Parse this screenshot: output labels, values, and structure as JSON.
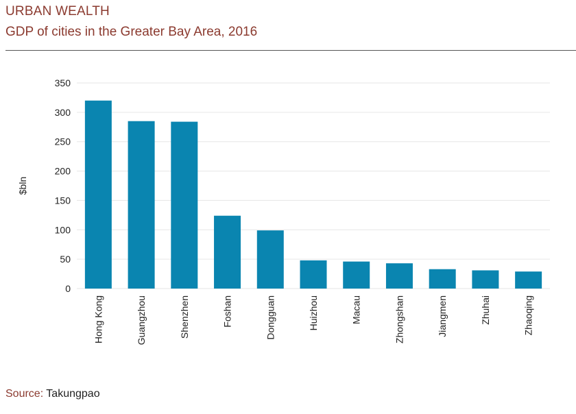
{
  "header": {
    "kicker": "URBAN WEALTH",
    "title": "GDP of cities in the Greater Bay Area, 2016"
  },
  "source": {
    "label": "Source:",
    "value": "Takungpao"
  },
  "colors": {
    "bar": "#0a85b0",
    "grid": "#e6e6e6",
    "accent": "#8b3a2f"
  },
  "chart_data": {
    "type": "bar",
    "title": "GDP of cities in the Greater Bay Area, 2016",
    "xlabel": "",
    "ylabel": "$bln",
    "ylim": [
      0,
      350
    ],
    "yticks": [
      0,
      50,
      100,
      150,
      200,
      250,
      300,
      350
    ],
    "grid": true,
    "categories": [
      "Hong Kong",
      "Guangzhou",
      "Shenzhen",
      "Foshan",
      "Dongguan",
      "Huizhou",
      "Macau",
      "Zhongshan",
      "Jiangmen",
      "Zhuhai",
      "Zhaoqing"
    ],
    "values": [
      320,
      285,
      284,
      124,
      99,
      48,
      46,
      43,
      33,
      31,
      29
    ]
  }
}
